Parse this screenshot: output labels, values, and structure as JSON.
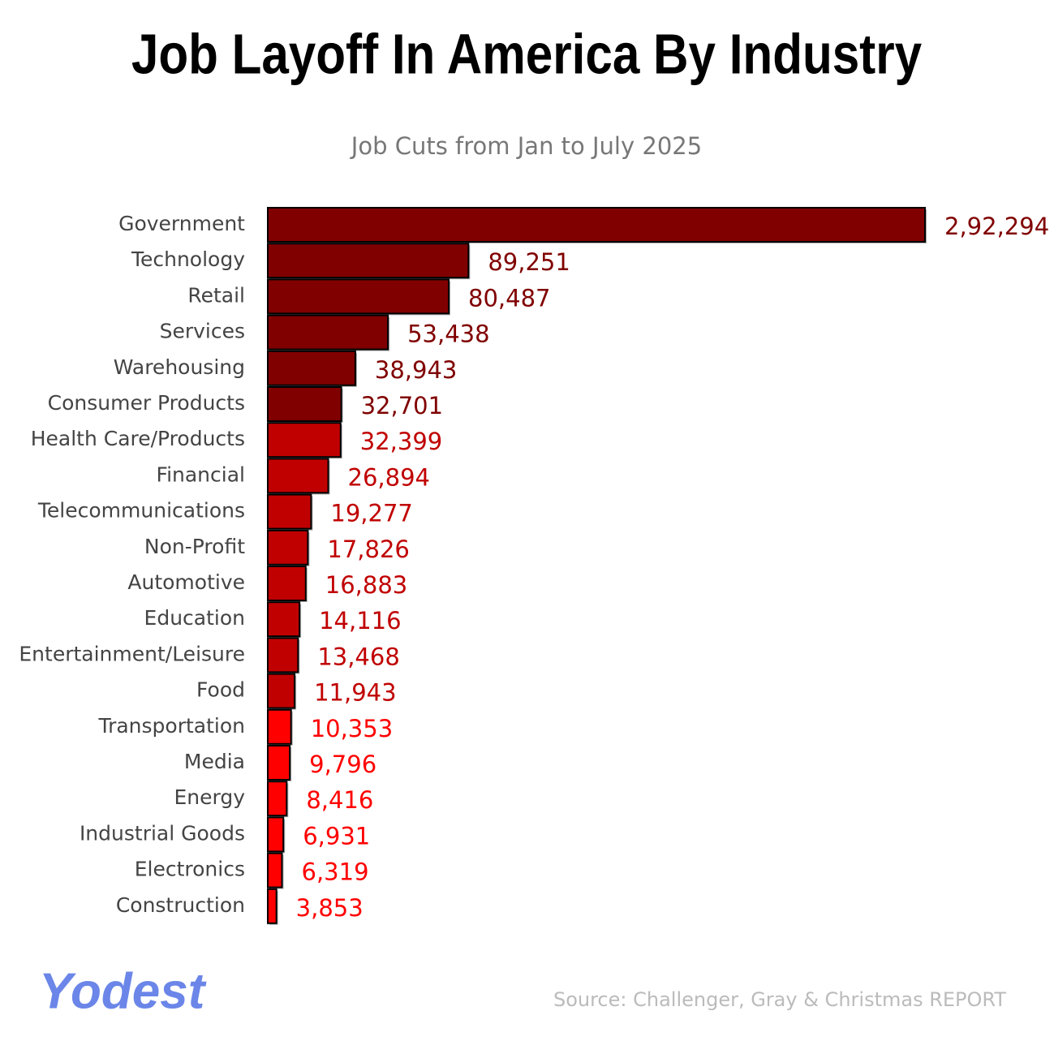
{
  "chart_data": {
    "type": "bar",
    "orientation": "horizontal",
    "title": "Job Layoff In America By Industry",
    "subtitle": "Job Cuts from Jan to July 2025",
    "categories": [
      "Government",
      "Technology",
      "Retail",
      "Services",
      "Warehousing",
      "Consumer Products",
      "Health Care/Products",
      "Financial",
      "Telecommunications",
      "Non-Profit",
      "Automotive",
      "Education",
      "Entertainment/Leisure",
      "Food",
      "Transportation",
      "Media",
      "Energy",
      "Industrial Goods",
      "Electronics",
      "Construction"
    ],
    "values": [
      292294,
      89251,
      80487,
      53438,
      38943,
      32701,
      32399,
      26894,
      19277,
      17826,
      16883,
      14116,
      13468,
      11943,
      10353,
      9796,
      8416,
      6931,
      6319,
      3853
    ],
    "value_labels": [
      "2,92,294",
      "89,251",
      "80,487",
      "53,438",
      "38,943",
      "32,701",
      "32,399",
      "26,894",
      "19,277",
      "17,826",
      "16,883",
      "14,116",
      "13,468",
      "11,943",
      "10,353",
      "9,796",
      "8,416",
      "6,931",
      "6,319",
      "3,853"
    ],
    "colors": [
      "#800000",
      "#800000",
      "#800000",
      "#800000",
      "#800000",
      "#800000",
      "#c00000",
      "#c00000",
      "#c00000",
      "#c00000",
      "#c00000",
      "#c00000",
      "#c00000",
      "#c00000",
      "#ff0000",
      "#ff0000",
      "#ff0000",
      "#ff0000",
      "#ff0000",
      "#ff0000"
    ],
    "logo": "Yodest",
    "source": "Source: Challenger, Gray & Christmas REPORT"
  }
}
